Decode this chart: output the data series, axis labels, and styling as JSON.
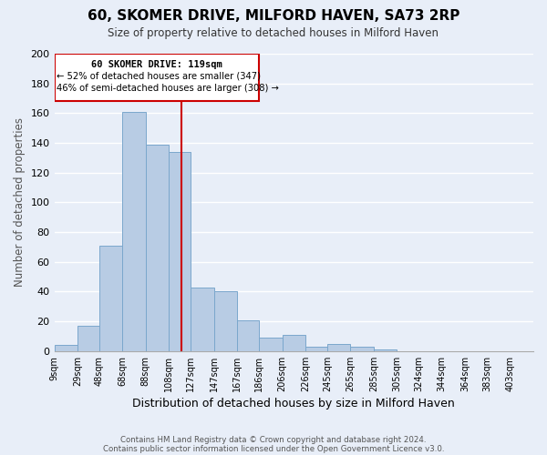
{
  "title": "60, SKOMER DRIVE, MILFORD HAVEN, SA73 2RP",
  "subtitle": "Size of property relative to detached houses in Milford Haven",
  "xlabel": "Distribution of detached houses by size in Milford Haven",
  "ylabel": "Number of detached properties",
  "bar_color": "#b8cce4",
  "bar_edge_color": "#7ba7cc",
  "background_color": "#e8eef8",
  "grid_color": "#ffffff",
  "annotation_box_color": "#cc0000",
  "property_line_color": "#cc0000",
  "property_value": 119,
  "property_label": "60 SKOMER DRIVE: 119sqm",
  "smaller_pct": "52%",
  "smaller_count": 347,
  "larger_pct": "46%",
  "larger_count": 308,
  "bin_labels": [
    "9sqm",
    "29sqm",
    "48sqm",
    "68sqm",
    "88sqm",
    "108sqm",
    "127sqm",
    "147sqm",
    "167sqm",
    "186sqm",
    "206sqm",
    "226sqm",
    "245sqm",
    "265sqm",
    "285sqm",
    "305sqm",
    "324sqm",
    "344sqm",
    "364sqm",
    "383sqm",
    "403sqm"
  ],
  "bin_edges": [
    9,
    29,
    48,
    68,
    88,
    108,
    127,
    147,
    167,
    186,
    206,
    226,
    245,
    265,
    285,
    305,
    324,
    344,
    364,
    383,
    403,
    423
  ],
  "counts": [
    4,
    17,
    71,
    161,
    139,
    134,
    43,
    40,
    21,
    9,
    11,
    3,
    5,
    3,
    1,
    0,
    0,
    0,
    0,
    0,
    0
  ],
  "ylim": [
    0,
    200
  ],
  "yticks": [
    0,
    20,
    40,
    60,
    80,
    100,
    120,
    140,
    160,
    180,
    200
  ],
  "footer1": "Contains HM Land Registry data © Crown copyright and database right 2024.",
  "footer2": "Contains public sector information licensed under the Open Government Licence v3.0."
}
